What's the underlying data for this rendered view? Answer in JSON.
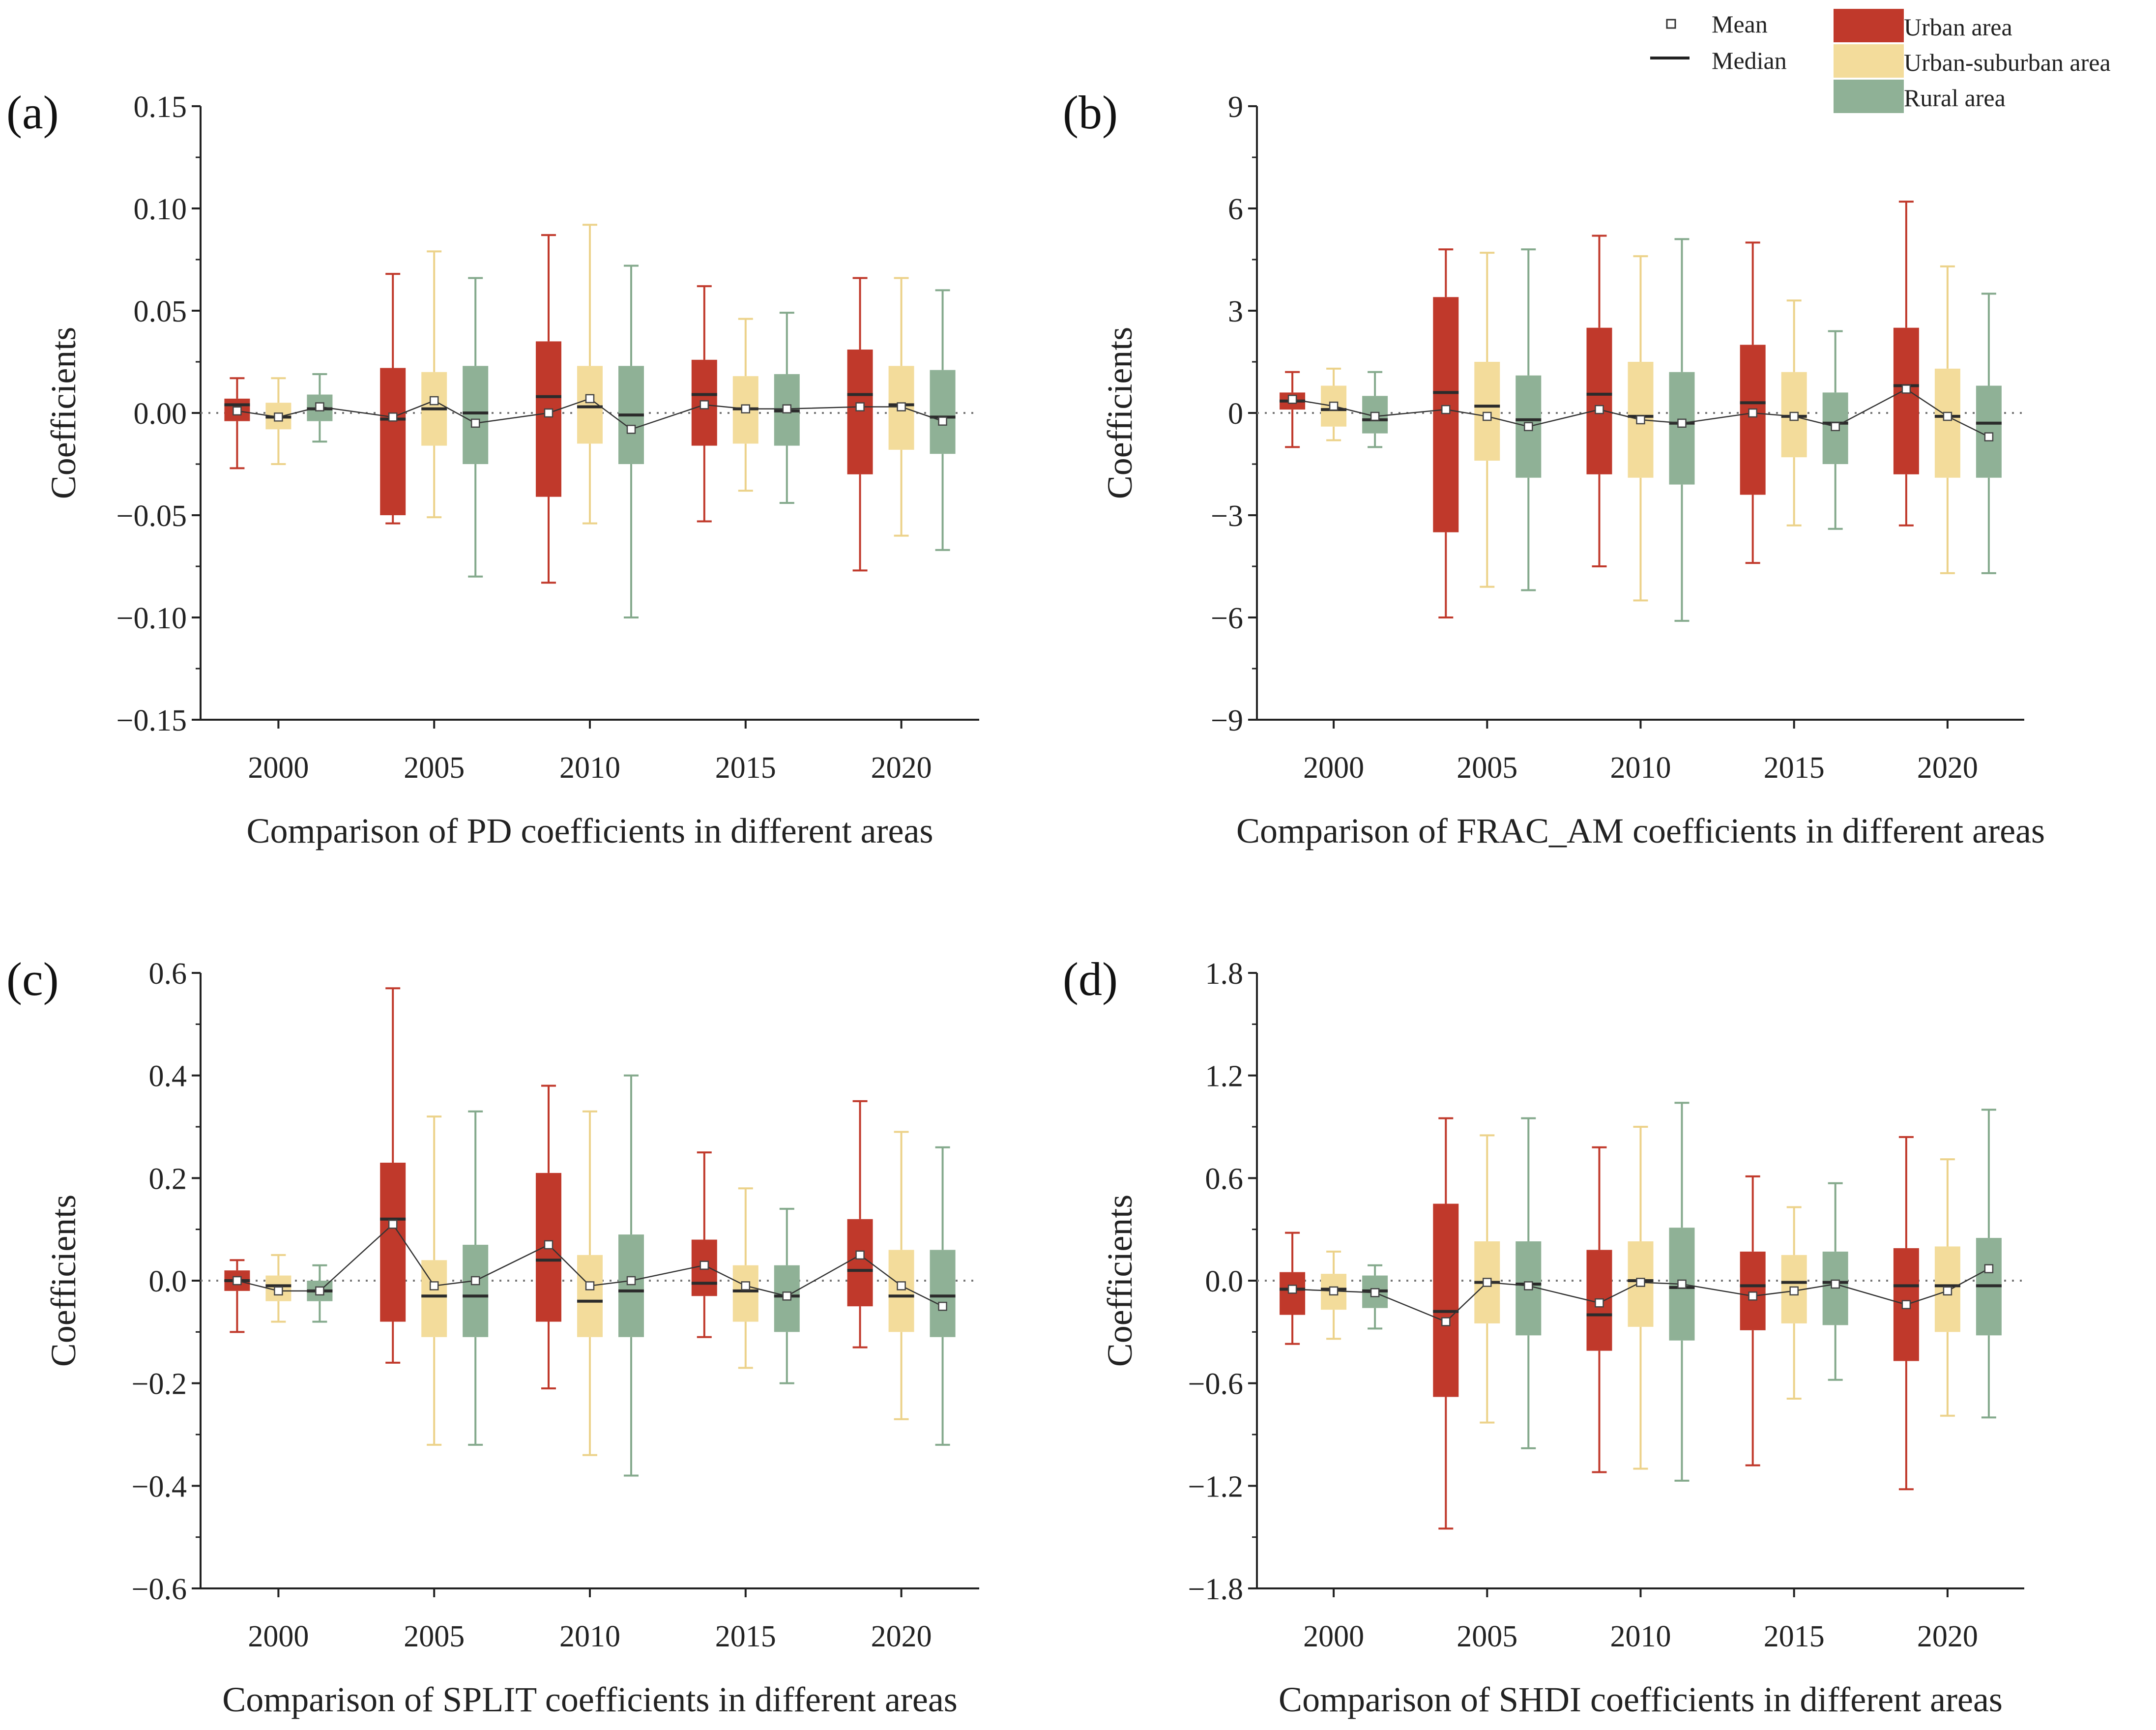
{
  "legend": {
    "mean_label": "Mean",
    "median_label": "Median",
    "groups": [
      {
        "name": "Urban area",
        "color": "#c0392b",
        "whisker_color": "#c0392b"
      },
      {
        "name": "Urban-suburban area",
        "color": "#f3dc9b",
        "whisker_color": "#ecd28a"
      },
      {
        "name": "Rural area",
        "color": "#8fb196",
        "whisker_color": "#84a98c"
      }
    ]
  },
  "chart_data": [
    {
      "panel": "(a)",
      "type": "box",
      "xlabel": "Comparison of PD coefficients in different areas",
      "ylabel": "Coefficients",
      "categories": [
        "2000",
        "2005",
        "2010",
        "2015",
        "2020"
      ],
      "ylim": [
        -0.15,
        0.15
      ],
      "yticks": [
        -0.15,
        -0.1,
        -0.05,
        0.0,
        0.05,
        0.1,
        0.15
      ],
      "ytick_labels": [
        "−0.15",
        "−0.10",
        "−0.05",
        "0.00",
        "0.05",
        "0.10",
        "0.15"
      ],
      "reference_line": 0,
      "series": [
        {
          "name": "Urban area",
          "boxes": [
            {
              "min": -0.027,
              "q1": -0.004,
              "median": 0.004,
              "q3": 0.007,
              "max": 0.017,
              "mean": 0.001
            },
            {
              "min": -0.054,
              "q1": -0.05,
              "median": -0.003,
              "q3": 0.022,
              "max": 0.068,
              "mean": -0.002
            },
            {
              "min": -0.083,
              "q1": -0.041,
              "median": 0.008,
              "q3": 0.035,
              "max": 0.087,
              "mean": 0.0
            },
            {
              "min": -0.053,
              "q1": -0.016,
              "median": 0.009,
              "q3": 0.026,
              "max": 0.062,
              "mean": 0.004
            },
            {
              "min": -0.077,
              "q1": -0.03,
              "median": 0.009,
              "q3": 0.031,
              "max": 0.066,
              "mean": 0.003
            }
          ]
        },
        {
          "name": "Urban-suburban area",
          "boxes": [
            {
              "min": -0.025,
              "q1": -0.008,
              "median": -0.002,
              "q3": 0.005,
              "max": 0.017,
              "mean": -0.002
            },
            {
              "min": -0.051,
              "q1": -0.016,
              "median": 0.002,
              "q3": 0.02,
              "max": 0.079,
              "mean": 0.006
            },
            {
              "min": -0.054,
              "q1": -0.015,
              "median": 0.003,
              "q3": 0.023,
              "max": 0.092,
              "mean": 0.007
            },
            {
              "min": -0.038,
              "q1": -0.015,
              "median": 0.002,
              "q3": 0.018,
              "max": 0.046,
              "mean": 0.002
            },
            {
              "min": -0.06,
              "q1": -0.018,
              "median": 0.004,
              "q3": 0.023,
              "max": 0.066,
              "mean": 0.003
            }
          ]
        },
        {
          "name": "Rural area",
          "boxes": [
            {
              "min": -0.014,
              "q1": -0.004,
              "median": 0.002,
              "q3": 0.009,
              "max": 0.019,
              "mean": 0.003
            },
            {
              "min": -0.08,
              "q1": -0.025,
              "median": 0.0,
              "q3": 0.023,
              "max": 0.066,
              "mean": -0.005
            },
            {
              "min": -0.1,
              "q1": -0.025,
              "median": -0.001,
              "q3": 0.023,
              "max": 0.072,
              "mean": -0.008
            },
            {
              "min": -0.044,
              "q1": -0.016,
              "median": 0.001,
              "q3": 0.019,
              "max": 0.049,
              "mean": 0.002
            },
            {
              "min": -0.067,
              "q1": -0.02,
              "median": -0.002,
              "q3": 0.021,
              "max": 0.06,
              "mean": -0.004
            }
          ]
        }
      ]
    },
    {
      "panel": "(b)",
      "type": "box",
      "xlabel": "Comparison of  FRAC_AM coefficients in different areas",
      "ylabel": "Coefficients",
      "categories": [
        "2000",
        "2005",
        "2010",
        "2015",
        "2020"
      ],
      "ylim": [
        -9,
        9
      ],
      "yticks": [
        -9,
        -6,
        -3,
        0,
        3,
        6,
        9
      ],
      "ytick_labels": [
        "−9",
        "−6",
        "−3",
        "0",
        "3",
        "6",
        "9"
      ],
      "reference_line": 0,
      "series": [
        {
          "name": "Urban area",
          "boxes": [
            {
              "min": -1.0,
              "q1": 0.1,
              "median": 0.35,
              "q3": 0.6,
              "max": 1.2,
              "mean": 0.4
            },
            {
              "min": -6.0,
              "q1": -3.5,
              "median": 0.6,
              "q3": 3.4,
              "max": 4.8,
              "mean": 0.1
            },
            {
              "min": -4.5,
              "q1": -1.8,
              "median": 0.55,
              "q3": 2.5,
              "max": 5.2,
              "mean": 0.1
            },
            {
              "min": -4.4,
              "q1": -2.4,
              "median": 0.3,
              "q3": 2.0,
              "max": 5.0,
              "mean": 0.0
            },
            {
              "min": -3.3,
              "q1": -1.8,
              "median": 0.8,
              "q3": 2.5,
              "max": 6.2,
              "mean": 0.7
            }
          ]
        },
        {
          "name": "Urban-suburban area",
          "boxes": [
            {
              "min": -0.8,
              "q1": -0.4,
              "median": 0.1,
              "q3": 0.8,
              "max": 1.3,
              "mean": 0.2
            },
            {
              "min": -5.1,
              "q1": -1.4,
              "median": 0.2,
              "q3": 1.5,
              "max": 4.7,
              "mean": -0.1
            },
            {
              "min": -5.5,
              "q1": -1.9,
              "median": -0.1,
              "q3": 1.5,
              "max": 4.6,
              "mean": -0.2
            },
            {
              "min": -3.3,
              "q1": -1.3,
              "median": -0.1,
              "q3": 1.2,
              "max": 3.3,
              "mean": -0.1
            },
            {
              "min": -4.7,
              "q1": -1.9,
              "median": -0.1,
              "q3": 1.3,
              "max": 4.3,
              "mean": -0.1
            }
          ]
        },
        {
          "name": "Rural area",
          "boxes": [
            {
              "min": -1.0,
              "q1": -0.6,
              "median": -0.2,
              "q3": 0.5,
              "max": 1.2,
              "mean": -0.1
            },
            {
              "min": -5.2,
              "q1": -1.9,
              "median": -0.2,
              "q3": 1.1,
              "max": 4.8,
              "mean": -0.4
            },
            {
              "min": -6.1,
              "q1": -2.1,
              "median": -0.3,
              "q3": 1.2,
              "max": 5.1,
              "mean": -0.3
            },
            {
              "min": -3.4,
              "q1": -1.5,
              "median": -0.3,
              "q3": 0.6,
              "max": 2.4,
              "mean": -0.4
            },
            {
              "min": -4.7,
              "q1": -1.9,
              "median": -0.3,
              "q3": 0.8,
              "max": 3.5,
              "mean": -0.7
            }
          ]
        }
      ]
    },
    {
      "panel": "(c)",
      "type": "box",
      "xlabel": "Comparison of SPLIT coefficients in different areas",
      "ylabel": "Coefficients",
      "categories": [
        "2000",
        "2005",
        "2010",
        "2015",
        "2020"
      ],
      "ylim": [
        -0.6,
        0.6
      ],
      "yticks": [
        -0.6,
        -0.4,
        -0.2,
        0.0,
        0.2,
        0.4,
        0.6
      ],
      "ytick_labels": [
        "−0.6",
        "−0.4",
        "−0.2",
        "0.0",
        "0.2",
        "0.4",
        "0.6"
      ],
      "reference_line": 0,
      "series": [
        {
          "name": "Urban area",
          "boxes": [
            {
              "min": -0.1,
              "q1": -0.02,
              "median": 0.0,
              "q3": 0.02,
              "max": 0.04,
              "mean": 0.0
            },
            {
              "min": -0.16,
              "q1": -0.08,
              "median": 0.12,
              "q3": 0.23,
              "max": 0.57,
              "mean": 0.11
            },
            {
              "min": -0.21,
              "q1": -0.08,
              "median": 0.04,
              "q3": 0.21,
              "max": 0.38,
              "mean": 0.07
            },
            {
              "min": -0.11,
              "q1": -0.03,
              "median": -0.005,
              "q3": 0.08,
              "max": 0.25,
              "mean": 0.03
            },
            {
              "min": -0.13,
              "q1": -0.05,
              "median": 0.02,
              "q3": 0.12,
              "max": 0.35,
              "mean": 0.05
            }
          ]
        },
        {
          "name": "Urban-suburban area",
          "boxes": [
            {
              "min": -0.08,
              "q1": -0.04,
              "median": -0.01,
              "q3": 0.01,
              "max": 0.05,
              "mean": -0.02
            },
            {
              "min": -0.32,
              "q1": -0.11,
              "median": -0.03,
              "q3": 0.04,
              "max": 0.32,
              "mean": -0.01
            },
            {
              "min": -0.34,
              "q1": -0.11,
              "median": -0.04,
              "q3": 0.05,
              "max": 0.33,
              "mean": -0.01
            },
            {
              "min": -0.17,
              "q1": -0.08,
              "median": -0.02,
              "q3": 0.03,
              "max": 0.18,
              "mean": -0.01
            },
            {
              "min": -0.27,
              "q1": -0.1,
              "median": -0.03,
              "q3": 0.06,
              "max": 0.29,
              "mean": -0.01
            }
          ]
        },
        {
          "name": "Rural area",
          "boxes": [
            {
              "min": -0.08,
              "q1": -0.04,
              "median": -0.02,
              "q3": 0.0,
              "max": 0.03,
              "mean": -0.02
            },
            {
              "min": -0.32,
              "q1": -0.11,
              "median": -0.03,
              "q3": 0.07,
              "max": 0.33,
              "mean": 0.0
            },
            {
              "min": -0.38,
              "q1": -0.11,
              "median": -0.02,
              "q3": 0.09,
              "max": 0.4,
              "mean": 0.0
            },
            {
              "min": -0.2,
              "q1": -0.1,
              "median": -0.03,
              "q3": 0.03,
              "max": 0.14,
              "mean": -0.03
            },
            {
              "min": -0.32,
              "q1": -0.11,
              "median": -0.03,
              "q3": 0.06,
              "max": 0.26,
              "mean": -0.05
            }
          ]
        }
      ]
    },
    {
      "panel": "(d)",
      "type": "box",
      "xlabel": "Comparison of  SHDI coefficients in different areas",
      "ylabel": "Coefficients",
      "categories": [
        "2000",
        "2005",
        "2010",
        "2015",
        "2020"
      ],
      "ylim": [
        -1.8,
        1.8
      ],
      "yticks": [
        -1.8,
        -1.2,
        -0.6,
        0.0,
        0.6,
        1.2,
        1.8
      ],
      "ytick_labels": [
        "−1.8",
        "−1.2",
        "−0.6",
        "0.0",
        "0.6",
        "1.2",
        "1.8"
      ],
      "reference_line": 0,
      "series": [
        {
          "name": "Urban area",
          "boxes": [
            {
              "min": -0.37,
              "q1": -0.2,
              "median": -0.05,
              "q3": 0.05,
              "max": 0.28,
              "mean": -0.05
            },
            {
              "min": -1.45,
              "q1": -0.68,
              "median": -0.18,
              "q3": 0.45,
              "max": 0.95,
              "mean": -0.24
            },
            {
              "min": -1.12,
              "q1": -0.41,
              "median": -0.2,
              "q3": 0.18,
              "max": 0.78,
              "mean": -0.13
            },
            {
              "min": -1.08,
              "q1": -0.29,
              "median": -0.03,
              "q3": 0.17,
              "max": 0.61,
              "mean": -0.09
            },
            {
              "min": -1.22,
              "q1": -0.47,
              "median": -0.03,
              "q3": 0.19,
              "max": 0.84,
              "mean": -0.14
            }
          ]
        },
        {
          "name": "Urban-suburban area",
          "boxes": [
            {
              "min": -0.34,
              "q1": -0.17,
              "median": -0.05,
              "q3": 0.04,
              "max": 0.17,
              "mean": -0.06
            },
            {
              "min": -0.83,
              "q1": -0.25,
              "median": -0.01,
              "q3": 0.23,
              "max": 0.85,
              "mean": -0.01
            },
            {
              "min": -1.1,
              "q1": -0.27,
              "median": 0.0,
              "q3": 0.23,
              "max": 0.9,
              "mean": -0.01
            },
            {
              "min": -0.69,
              "q1": -0.25,
              "median": -0.01,
              "q3": 0.15,
              "max": 0.43,
              "mean": -0.06
            },
            {
              "min": -0.79,
              "q1": -0.3,
              "median": -0.03,
              "q3": 0.2,
              "max": 0.71,
              "mean": -0.06
            }
          ]
        },
        {
          "name": "Rural area",
          "boxes": [
            {
              "min": -0.28,
              "q1": -0.16,
              "median": -0.06,
              "q3": 0.03,
              "max": 0.09,
              "mean": -0.07
            },
            {
              "min": -0.98,
              "q1": -0.32,
              "median": -0.02,
              "q3": 0.23,
              "max": 0.95,
              "mean": -0.03
            },
            {
              "min": -1.17,
              "q1": -0.35,
              "median": -0.04,
              "q3": 0.31,
              "max": 1.04,
              "mean": -0.02
            },
            {
              "min": -0.58,
              "q1": -0.26,
              "median": -0.01,
              "q3": 0.17,
              "max": 0.57,
              "mean": -0.02
            },
            {
              "min": -0.8,
              "q1": -0.32,
              "median": -0.03,
              "q3": 0.25,
              "max": 1.0,
              "mean": 0.07
            }
          ]
        }
      ]
    }
  ]
}
